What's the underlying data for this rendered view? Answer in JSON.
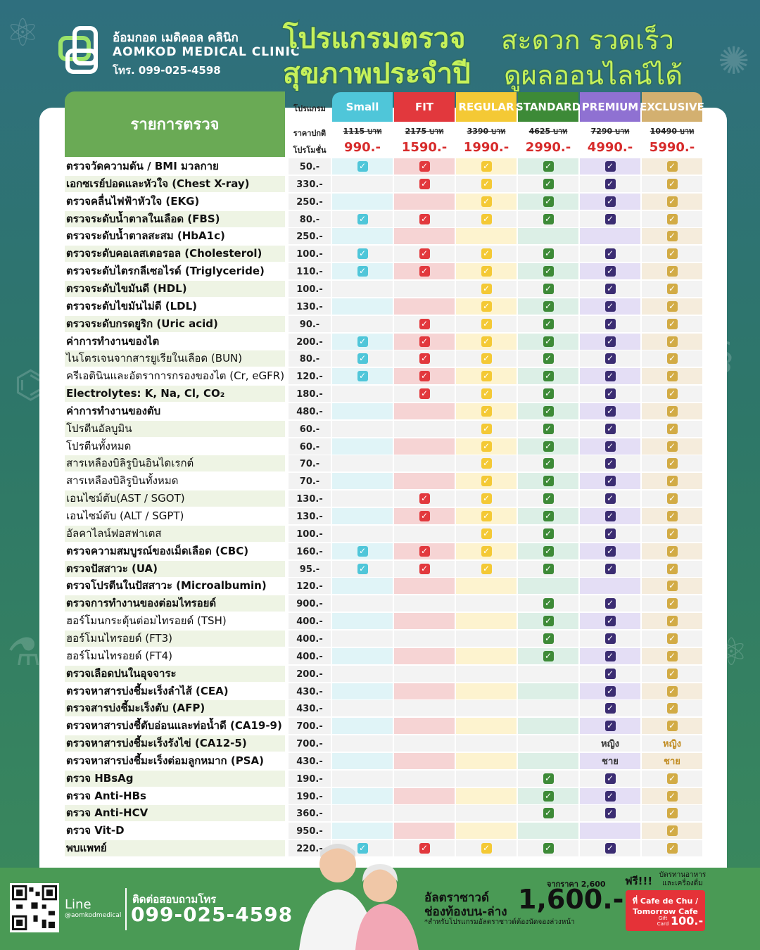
{
  "header": {
    "clinic_name_th": "อ้อมกอด เมดิคอล คลินิก",
    "clinic_name_en": "AOMKOD MEDICAL CLINIC",
    "clinic_tel": "โทร. 099-025-4598",
    "headline_1": "โปรแกรมตรวจ",
    "headline_2": "สะดวก รวดเร็ว",
    "headline_3": "สุขภาพประจำปี",
    "headline_4": "ดูผลออนไลน์ได้"
  },
  "table": {
    "items_header": "รายการตรวจ",
    "program_label": "โปรแกรม",
    "regular_label": "ราคาปกติ",
    "promo_label": "โปรโมชั่น",
    "packages": [
      {
        "name": "Small",
        "regular": "1115 บาท",
        "promo": "990.-",
        "color": "#4fc6d9",
        "light": "#e0f4f7",
        "check": "#4fc6d9"
      },
      {
        "name": "FIT",
        "regular": "2175 บาท",
        "promo": "1590.-",
        "color": "#e2383d",
        "light": "#f6d4d4",
        "check": "#e2383d"
      },
      {
        "name": "REGULAR",
        "regular": "3390 บาท",
        "promo": "1990.-",
        "color": "#f4c935",
        "light": "#fdf3cf",
        "check": "#f4c935"
      },
      {
        "name": "STANDARD",
        "regular": "4625 บาท",
        "promo": "2990.-",
        "color": "#3d8a37",
        "light": "#dcefe6",
        "check": "#3d8a37"
      },
      {
        "name": "PREMIUM",
        "regular": "7290 บาท",
        "promo": "4990.-",
        "color": "#8f71d2",
        "light": "#e4def5",
        "check": "#3b2d72"
      },
      {
        "name": "EXCLUSIVE",
        "regular": "10490 บาท",
        "promo": "5990.-",
        "color": "#d3b070",
        "light": "#f5ecdc",
        "check": "#d2ab45"
      }
    ],
    "rows": [
      {
        "name": "ตรวจวัดความดัน / BMI มวลกาย",
        "bold": true,
        "price": "50.-",
        "cells": [
          "y",
          "y",
          "y",
          "y",
          "y",
          "y"
        ]
      },
      {
        "name": "เอกซเรย์ปอดและหัวใจ (Chest X-ray)",
        "bold": true,
        "price": "330.-",
        "cells": [
          "",
          "y",
          "y",
          "y",
          "y",
          "y"
        ]
      },
      {
        "name": "ตรวจคลื่นไฟฟ้าหัวใจ (EKG)",
        "bold": true,
        "price": "250.-",
        "cells": [
          "",
          "",
          "y",
          "y",
          "y",
          "y"
        ]
      },
      {
        "name": "ตรวจระดับน้ำตาลในเลือด (FBS)",
        "bold": true,
        "price": "80.-",
        "cells": [
          "y",
          "y",
          "y",
          "y",
          "y",
          "y"
        ]
      },
      {
        "name": "ตรวจระดับน้ำตาลสะสม (HbA1c)",
        "bold": true,
        "price": "250.-",
        "cells": [
          "",
          "",
          "",
          "",
          "",
          "y"
        ]
      },
      {
        "name": "ตรวจระดับคอเลสเตอรอล (Cholesterol)",
        "bold": true,
        "price": "100.-",
        "cells": [
          "y",
          "y",
          "y",
          "y",
          "y",
          "y"
        ]
      },
      {
        "name": "ตรวจระดับไตรกลีเซอไรด์ (Triglyceride)",
        "bold": true,
        "price": "110.-",
        "cells": [
          "y",
          "y",
          "y",
          "y",
          "y",
          "y"
        ]
      },
      {
        "name": "ตรวจระดับไขมันดี (HDL)",
        "bold": true,
        "price": "100.-",
        "cells": [
          "",
          "",
          "y",
          "y",
          "y",
          "y"
        ]
      },
      {
        "name": "ตรวจระดับไขมันไม่ดี (LDL)",
        "bold": true,
        "price": "130.-",
        "cells": [
          "",
          "",
          "y",
          "y",
          "y",
          "y"
        ]
      },
      {
        "name": "ตรวจระดับกรดยูริก (Uric acid)",
        "bold": true,
        "price": "90.-",
        "cells": [
          "",
          "y",
          "y",
          "y",
          "y",
          "y"
        ]
      },
      {
        "name": "ค่าการทำงานของไต",
        "bold": true,
        "price": "200.-",
        "cells": [
          "y",
          "y",
          "y",
          "y",
          "y",
          "y"
        ]
      },
      {
        "name": "ไนโตรเจนจากสารยูเรียในเลือด (BUN)",
        "bold": false,
        "price": "80.-",
        "cells": [
          "y",
          "y",
          "y",
          "y",
          "y",
          "y"
        ]
      },
      {
        "name": "ครีเอตินินและอัตราการกรองของไต (Cr, eGFR)",
        "bold": false,
        "price": "120.-",
        "cells": [
          "y",
          "y",
          "y",
          "y",
          "y",
          "y"
        ]
      },
      {
        "name": "Electrolytes: K, Na, Cl, CO₂",
        "bold": true,
        "price": "180.-",
        "cells": [
          "",
          "y",
          "y",
          "y",
          "y",
          "y"
        ]
      },
      {
        "name": "ค่าการทำงานของตับ",
        "bold": true,
        "price": "480.-",
        "cells": [
          "",
          "",
          "y",
          "y",
          "y",
          "y"
        ]
      },
      {
        "name": "โปรตีนอัลบูมิน",
        "bold": false,
        "price": "60.-",
        "cells": [
          "",
          "",
          "y",
          "y",
          "y",
          "y"
        ]
      },
      {
        "name": "โปรตีนทั้งหมด",
        "bold": false,
        "price": "60.-",
        "cells": [
          "",
          "",
          "y",
          "y",
          "y",
          "y"
        ]
      },
      {
        "name": "สารเหลืองบิลิรูบินอินไดเรกต์",
        "bold": false,
        "price": "70.-",
        "cells": [
          "",
          "",
          "y",
          "y",
          "y",
          "y"
        ]
      },
      {
        "name": "สารเหลืองบิลิรูบินทั้งหมด",
        "bold": false,
        "price": "70.-",
        "cells": [
          "",
          "",
          "y",
          "y",
          "y",
          "y"
        ]
      },
      {
        "name": "เอนไซม์ตับ(AST / SGOT)",
        "bold": false,
        "price": "130.-",
        "cells": [
          "",
          "y",
          "y",
          "y",
          "y",
          "y"
        ]
      },
      {
        "name": "เอนไซม์ตับ (ALT / SGPT)",
        "bold": false,
        "price": "130.-",
        "cells": [
          "",
          "y",
          "y",
          "y",
          "y",
          "y"
        ]
      },
      {
        "name": "อัลคาไลน์ฟอสฟาเตส",
        "bold": false,
        "price": "100.-",
        "cells": [
          "",
          "",
          "y",
          "y",
          "y",
          "y"
        ]
      },
      {
        "name": "ตรวจความสมบูรณ์ของเม็ดเลือด (CBC)",
        "bold": true,
        "price": "160.-",
        "cells": [
          "y",
          "y",
          "y",
          "y",
          "y",
          "y"
        ]
      },
      {
        "name": "ตรวจปัสสาวะ (UA)",
        "bold": true,
        "price": "95.-",
        "cells": [
          "y",
          "y",
          "y",
          "y",
          "y",
          "y"
        ]
      },
      {
        "name": "ตรวจโปรตีนในปัสสาวะ (Microalbumin)",
        "bold": true,
        "price": "120.-",
        "cells": [
          "",
          "",
          "",
          "",
          "",
          "y"
        ]
      },
      {
        "name": "ตรวจการทำงานของต่อมไทรอยด์",
        "bold": true,
        "price": "900.-",
        "cells": [
          "",
          "",
          "",
          "y",
          "y",
          "y"
        ]
      },
      {
        "name": "ฮอร์โมนกระตุ้นต่อมไทรอยด์ (TSH)",
        "bold": false,
        "price": "400.-",
        "cells": [
          "",
          "",
          "",
          "y",
          "y",
          "y"
        ]
      },
      {
        "name": "ฮอร์โมนไทรอยด์ (FT3)",
        "bold": false,
        "price": "400.-",
        "cells": [
          "",
          "",
          "",
          "y",
          "y",
          "y"
        ]
      },
      {
        "name": "ฮอร์โมนไทรอยด์ (FT4)",
        "bold": false,
        "price": "400.-",
        "cells": [
          "",
          "",
          "",
          "y",
          "y",
          "y"
        ]
      },
      {
        "name": "ตรวจเลือดปนในอุจจาระ",
        "bold": true,
        "price": "200.-",
        "cells": [
          "",
          "",
          "",
          "",
          "y",
          "y"
        ]
      },
      {
        "name": "ตรวจหาสารบ่งชี้มะเร็งลำไส้ (CEA)",
        "bold": true,
        "price": "430.-",
        "cells": [
          "",
          "",
          "",
          "",
          "y",
          "y"
        ]
      },
      {
        "name": "ตรวจสารบ่งชี้มะเร็งตับ (AFP)",
        "bold": true,
        "price": "430.-",
        "cells": [
          "",
          "",
          "",
          "",
          "y",
          "y"
        ]
      },
      {
        "name": "ตรวจหาสารบ่งชี้ตับอ่อนและท่อน้ำดี  (CA19-9)",
        "bold": true,
        "price": "700.-",
        "cells": [
          "",
          "",
          "",
          "",
          "y",
          "y"
        ]
      },
      {
        "name": "ตรวจหาสารบ่งชี้มะเร็งรังไข่ (CA12-5)",
        "bold": true,
        "price": "700.-",
        "cells": [
          "",
          "",
          "",
          "",
          "หญิง",
          "หญิง"
        ]
      },
      {
        "name": "ตรวจหาสารบ่งชี้มะเร็งต่อมลูกหมาก (PSA)",
        "bold": true,
        "price": "430.-",
        "cells": [
          "",
          "",
          "",
          "",
          "ชาย",
          "ชาย"
        ]
      },
      {
        "name": "ตรวจ HBsAg",
        "bold": true,
        "price": "190.-",
        "cells": [
          "",
          "",
          "",
          "y",
          "y",
          "y"
        ]
      },
      {
        "name": "ตรวจ Anti-HBs",
        "bold": true,
        "price": "190.-",
        "cells": [
          "",
          "",
          "",
          "y",
          "y",
          "y"
        ]
      },
      {
        "name": "ตรวจ Anti-HCV",
        "bold": true,
        "price": "360.-",
        "cells": [
          "",
          "",
          "",
          "y",
          "y",
          "y"
        ]
      },
      {
        "name": "ตรวจ Vit-D",
        "bold": true,
        "price": "950.-",
        "cells": [
          "",
          "",
          "",
          "",
          "",
          "y"
        ]
      },
      {
        "name": "พบแพทย์",
        "bold": true,
        "price": "220.-",
        "cells": [
          "y",
          "y",
          "y",
          "y",
          "y",
          "y"
        ]
      }
    ]
  },
  "footer": {
    "line_label": "Line",
    "line_id": "@aomkodmedical",
    "contact_label": "ติดต่อสอบถามโทร",
    "phone": "099-025-4598",
    "ultrasound_line1": "อัลตราซาวด์",
    "ultrasound_line2": "ช่องท้องบน-ล่าง",
    "ultrasound_from": "จากราคา 2,600",
    "ultrasound_price": "1,600.-",
    "ultrasound_note": "*สำหรับโปรแกรมอัลตราซาวด์ต้องนัดจองล่วงหน้า",
    "free_label": "ฟรี!!!",
    "free_sub": "บัตรทานอาหาร และเครื่องดื่ม",
    "gift_line1": "ที่ Cafe de Chu /",
    "gift_line2": "Tomorrow Cafe",
    "gift_small": "Gift Card",
    "gift_value": "100.-"
  }
}
